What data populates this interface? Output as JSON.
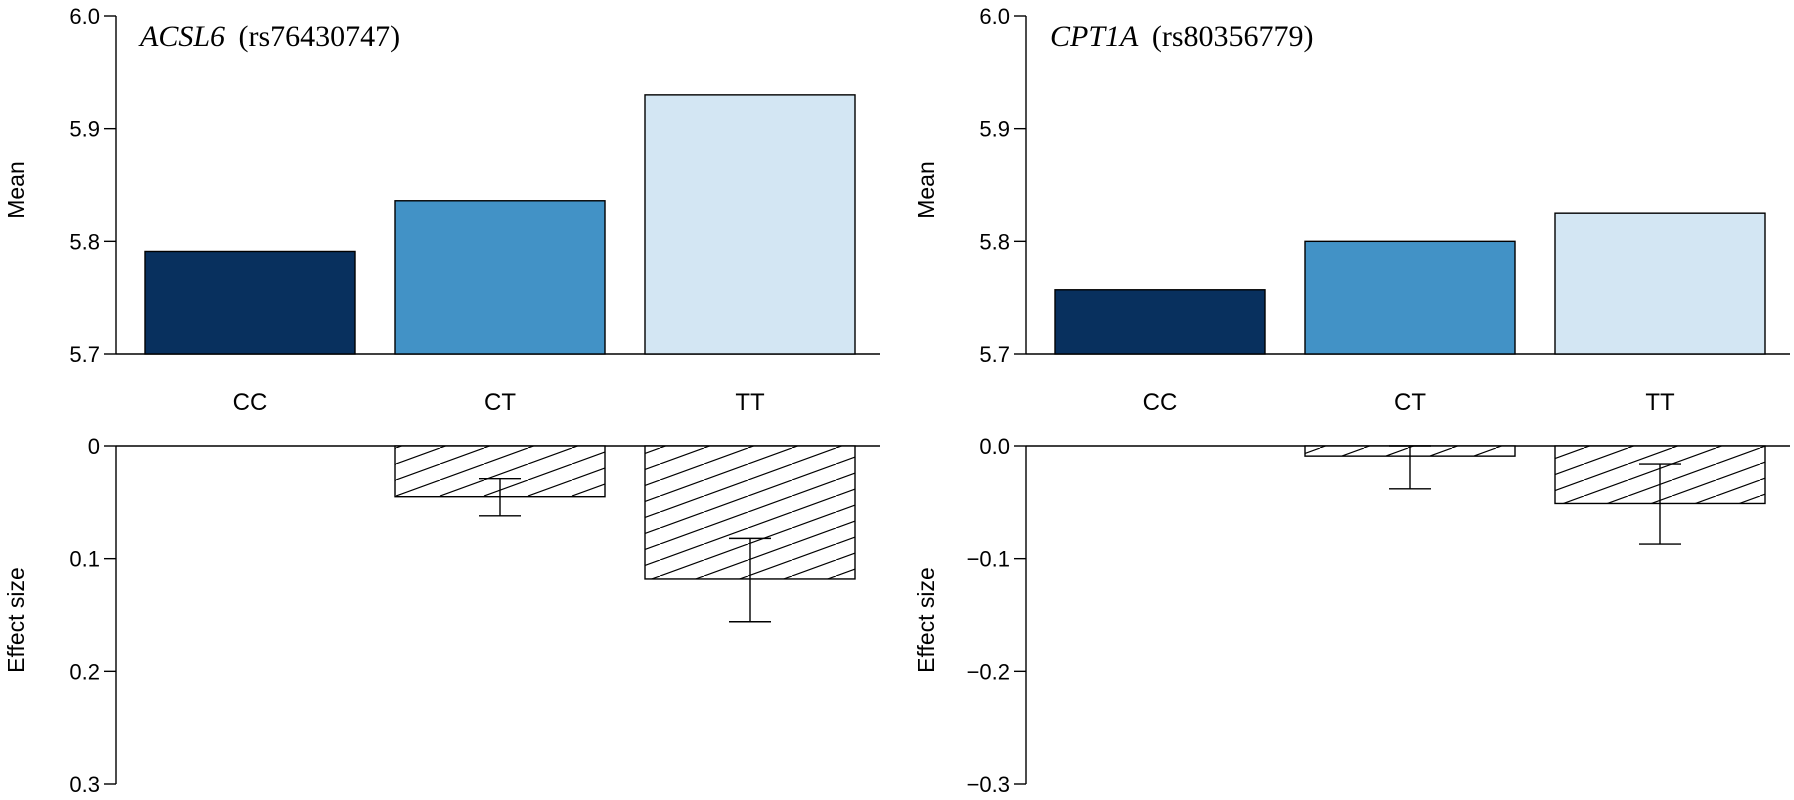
{
  "chart_data": [
    {
      "type": "bar",
      "title_gene": "ACSL6",
      "title_snp": "(rs76430747)",
      "categories": [
        "CC",
        "CT",
        "TT"
      ],
      "mean_plot": {
        "ylabel": "Mean",
        "ylim": [
          5.7,
          6.0
        ],
        "yticks": [
          "5.7",
          "5.8",
          "5.9",
          "6.0"
        ],
        "values": [
          5.791,
          5.836,
          5.93
        ]
      },
      "effect_plot": {
        "ylabel": "Effect size",
        "ylim": [
          0,
          0.3
        ],
        "inverted": true,
        "yticks": [
          "0",
          "0.1",
          "0.2",
          "0.3"
        ],
        "values": [
          0,
          0.045,
          0.118
        ],
        "err_low": [
          null,
          0.029,
          0.082
        ],
        "err_high": [
          null,
          0.062,
          0.156
        ]
      }
    },
    {
      "type": "bar",
      "title_gene": "CPT1A",
      "title_snp": "(rs80356779)",
      "categories": [
        "CC",
        "CT",
        "TT"
      ],
      "mean_plot": {
        "ylabel": "Mean",
        "ylim": [
          5.7,
          6.0
        ],
        "yticks": [
          "5.7",
          "5.8",
          "5.9",
          "6.0"
        ],
        "values": [
          5.757,
          5.8,
          5.825
        ]
      },
      "effect_plot": {
        "ylabel": "Effect size",
        "ylim": [
          0,
          -0.3
        ],
        "inverted": false,
        "yticks": [
          "0.0",
          "−0.1",
          "−0.2",
          "−0.3"
        ],
        "values": [
          0,
          -0.009,
          -0.051
        ],
        "err_low": [
          null,
          0.0,
          -0.016
        ],
        "err_high": [
          null,
          -0.038,
          -0.087
        ]
      }
    }
  ],
  "colors": {
    "CC": "#08305e",
    "CT": "#4292c6",
    "TT": "#d3e6f3"
  }
}
